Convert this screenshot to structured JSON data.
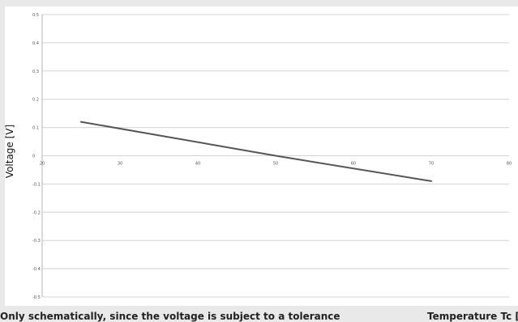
{
  "chart_data": {
    "type": "line",
    "title": "",
    "xlabel": "Temperature Tc [°C",
    "ylabel": "Voltage [V]",
    "xlim": [
      20,
      80
    ],
    "ylim": [
      -0.5,
      0.5
    ],
    "x_ticks": [
      20,
      30,
      40,
      50,
      60,
      70,
      80
    ],
    "y_ticks": [
      0.5,
      0.4,
      0.3,
      0.2,
      0.1,
      0,
      -0.1,
      -0.2,
      -0.3,
      -0.4,
      -0.5
    ],
    "grid": true,
    "series": [
      {
        "x": [
          25,
          50,
          70
        ],
        "y": [
          0.12,
          0.0,
          -0.09
        ]
      }
    ]
  },
  "footnote": "Only schematically, since the voltage is subject to a tolerance",
  "colors": {
    "background": "#e9e9e9",
    "plot_area": "#ffffff",
    "series": "#555555",
    "grid": "#d3d3d3"
  }
}
